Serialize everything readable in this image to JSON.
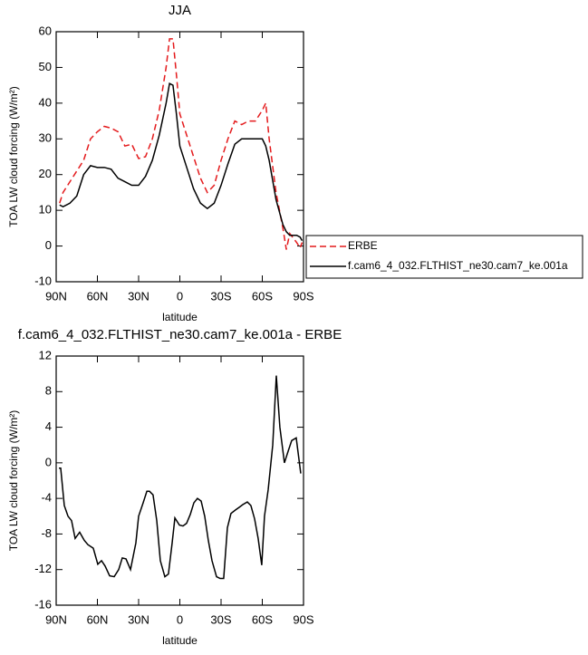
{
  "chart_data": [
    {
      "type": "line",
      "title": "JJA",
      "xlabel": "latitude",
      "ylabel": "TOA LW cloud forcing (W/m²)",
      "xlim": [
        90,
        -90
      ],
      "xticks": [
        {
          "value": 90,
          "label": "90N"
        },
        {
          "value": 60,
          "label": "60N"
        },
        {
          "value": 30,
          "label": "30N"
        },
        0,
        {
          "value": -30,
          "label": "30S"
        },
        {
          "value": -60,
          "label": "60S"
        },
        {
          "value": -90,
          "label": "90S"
        }
      ],
      "ylim": [
        -10,
        60
      ],
      "yticks": [
        -10,
        0,
        10,
        20,
        30,
        40,
        50,
        60
      ],
      "legend": "right",
      "x": [
        87.5,
        85,
        80,
        75,
        70,
        65,
        60,
        55,
        50,
        45,
        40,
        35,
        30,
        25,
        20,
        15,
        10,
        7.5,
        5,
        2.5,
        0,
        -5,
        -10,
        -15,
        -20,
        -25,
        -30,
        -35,
        -40,
        -45,
        -50,
        -55,
        -60,
        -62.5,
        -65,
        -70,
        -75,
        -77.5,
        -80,
        -85,
        -87.5,
        -89
      ],
      "series": [
        {
          "name": "ERBE",
          "color": "#e41a1c",
          "linestyle": "dashed",
          "values": [
            12,
            15,
            18,
            21,
            24,
            30,
            32,
            33.5,
            33,
            32,
            28,
            28.5,
            24.5,
            25,
            30,
            38,
            50,
            58,
            58,
            48,
            37,
            31,
            25,
            19,
            15,
            17,
            24,
            30,
            35,
            34,
            35,
            35,
            38,
            40,
            30,
            15,
            5,
            -1,
            3.5,
            1,
            -0.5,
            1
          ]
        },
        {
          "name": "f.cam6_4_032.FLTHIST_ne30.cam7_ke.001a",
          "color": "#000000",
          "linestyle": "solid",
          "values": [
            11.5,
            11,
            12,
            14,
            20,
            22.5,
            22,
            22,
            21.5,
            19,
            18,
            17,
            17,
            19.5,
            24,
            31,
            40,
            45.5,
            45,
            37,
            28,
            22,
            16,
            12,
            10.5,
            12,
            17,
            23,
            28.5,
            30,
            30,
            30,
            30,
            28,
            24,
            13,
            6,
            4,
            3,
            3,
            2.5,
            1.5
          ]
        }
      ]
    },
    {
      "type": "line",
      "title": "f.cam6_4_032.FLTHIST_ne30.cam7_ke.001a - ERBE",
      "xlabel": "latitude",
      "ylabel": "TOA LW cloud forcing (W/m²)",
      "xlim": [
        90,
        -90
      ],
      "xticks": [
        {
          "value": 90,
          "label": "90N"
        },
        {
          "value": 60,
          "label": "60N"
        },
        {
          "value": 30,
          "label": "30N"
        },
        0,
        {
          "value": -30,
          "label": "30S"
        },
        {
          "value": -60,
          "label": "60S"
        },
        {
          "value": -90,
          "label": "90S"
        }
      ],
      "ylim": [
        -16,
        12
      ],
      "yticks": [
        -16,
        -12,
        -8,
        -4,
        0,
        4,
        8,
        12
      ],
      "x": [
        88,
        86.7,
        84.1,
        81.4,
        78.8,
        76.2,
        72.9,
        69.6,
        66.9,
        63,
        59.7,
        57,
        54.4,
        51.1,
        47.8,
        44.5,
        41.9,
        39.2,
        35.9,
        32,
        30,
        26.7,
        24,
        22.1,
        19.5,
        16.8,
        14.2,
        10.9,
        8.3,
        5.6,
        3.6,
        0.3,
        -2.3,
        -4.9,
        -7.6,
        -10.2,
        -12.8,
        -15.5,
        -18.1,
        -20.7,
        -23.4,
        -26.7,
        -29.3,
        -31.9,
        -34.6,
        -37.2,
        -40.5,
        -43.2,
        -45.8,
        -49.1,
        -51.7,
        -54.4,
        -57,
        -59.6,
        -61.6,
        -64.3,
        -67.6,
        -70.2,
        -72.8,
        -76.1,
        -78.8,
        -81.4,
        -84.7,
        -88
      ],
      "series": [
        {
          "color": "#000000",
          "linestyle": "solid",
          "values": [
            -0.6,
            -0.6,
            -4.8,
            -6,
            -6.5,
            -8.5,
            -7.8,
            -8.7,
            -9.2,
            -9.6,
            -11.4,
            -11,
            -11.6,
            -12.7,
            -12.8,
            -12,
            -10.7,
            -10.8,
            -12,
            -9,
            -6,
            -4.5,
            -3.2,
            -3.2,
            -3.6,
            -6.5,
            -11,
            -12.8,
            -12.5,
            -9,
            -6.2,
            -7,
            -7.1,
            -6.8,
            -5.8,
            -4.5,
            -4,
            -4.3,
            -6,
            -8.7,
            -11,
            -12.8,
            -13,
            -13,
            -7.3,
            -5.7,
            -5.3,
            -5,
            -4.7,
            -4.4,
            -4.8,
            -6.3,
            -8.5,
            -11.5,
            -6,
            -3,
            2,
            9.8,
            4,
            0,
            1.3,
            2.5,
            2.8,
            -1.2
          ]
        }
      ]
    }
  ]
}
